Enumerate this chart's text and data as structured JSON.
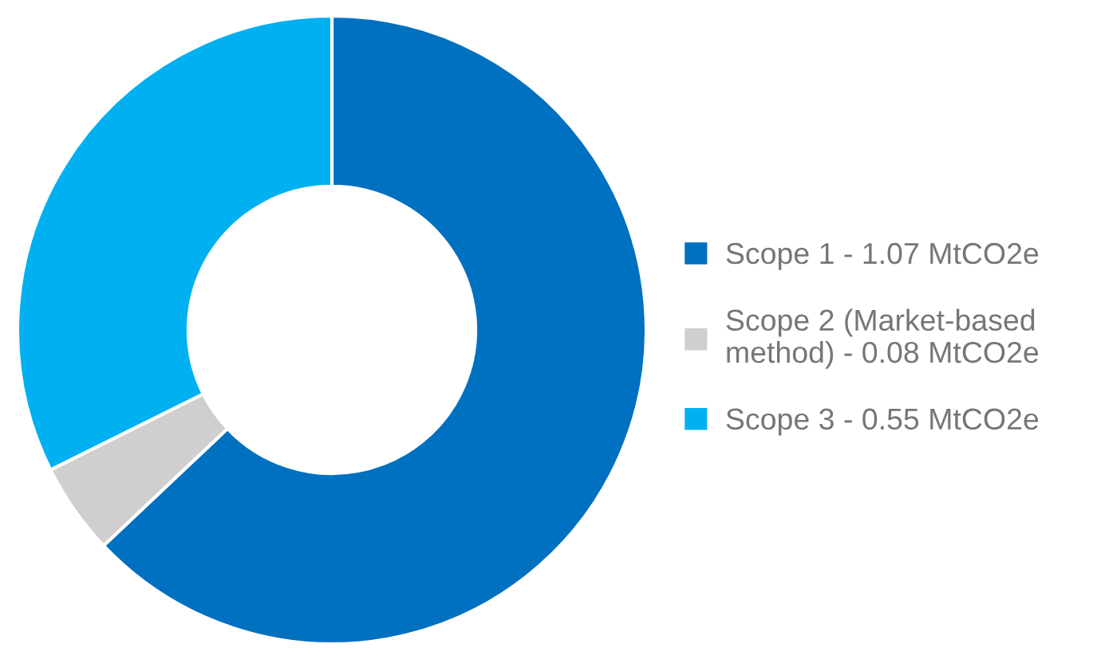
{
  "chart_data": {
    "type": "donut",
    "categories": [
      "Scope 1 - 1.07 MtCO2e",
      "Scope 2 (Market-based\nmethod) - 0.08 MtCO2e",
      "Scope 3 - 0.55 MtCO2e"
    ],
    "values": [
      1.07,
      0.08,
      0.55
    ],
    "colors": [
      "#0070c0",
      "#d0cece",
      "#00b0f0"
    ],
    "legend": "right"
  }
}
